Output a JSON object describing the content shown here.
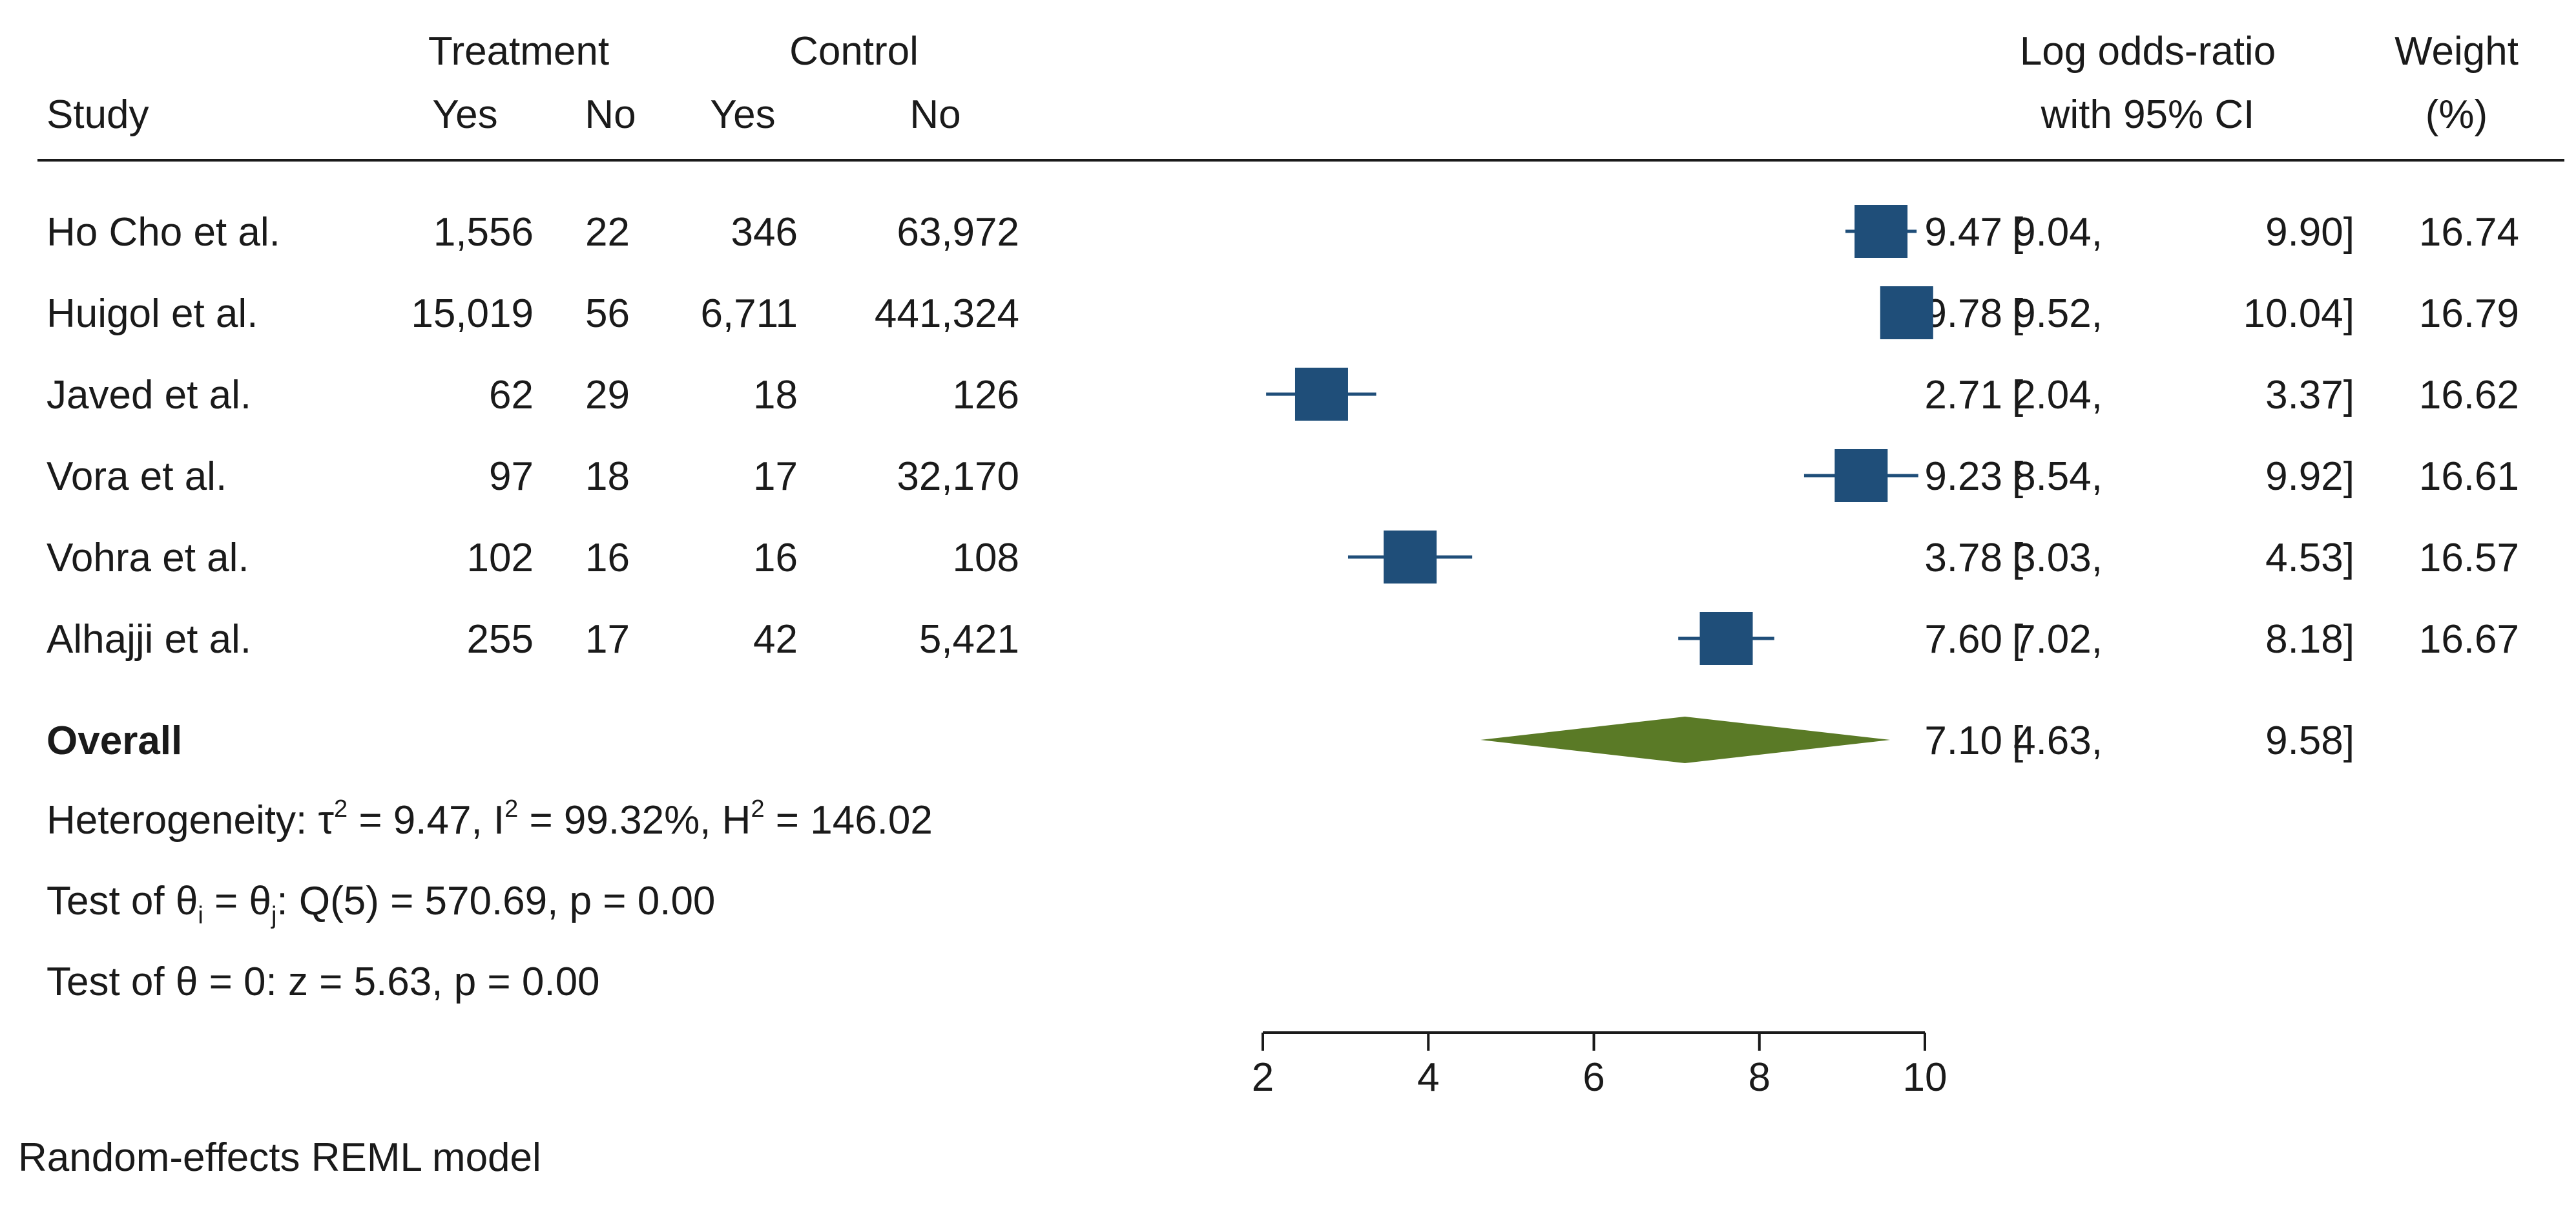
{
  "header": {
    "study": "Study",
    "treatment": "Treatment",
    "control": "Control",
    "yes": "Yes",
    "no": "No",
    "effect_line1": "Log odds-ratio",
    "effect_line2": "with 95% CI",
    "weight_line1": "Weight",
    "weight_line2": "(%)"
  },
  "chart_data": {
    "type": "forest",
    "effect_measure": "Log odds-ratio",
    "xlim": [
      2,
      10
    ],
    "xticks": [
      "2",
      "4",
      "6",
      "8",
      "10"
    ],
    "marker_color": "#1f4e79",
    "diamond_color": "#5a7a26",
    "studies": [
      {
        "name": "Ho Cho et al.",
        "t_yes": "1,556",
        "t_no": "22",
        "c_yes": "346",
        "c_no": "63,972",
        "est": 9.47,
        "lo": 9.04,
        "hi": 9.9,
        "est_text": "9.47",
        "lo_text": "9.04,",
        "hi_text": "9.90]",
        "weight": "16.74"
      },
      {
        "name": "Huigol et al.",
        "t_yes": "15,019",
        "t_no": "56",
        "c_yes": "6,711",
        "c_no": "441,324",
        "est": 9.78,
        "lo": 9.52,
        "hi": 10.04,
        "est_text": "9.78",
        "lo_text": "9.52,",
        "hi_text": "10.04]",
        "weight": "16.79"
      },
      {
        "name": "Javed et al.",
        "t_yes": "62",
        "t_no": "29",
        "c_yes": "18",
        "c_no": "126",
        "est": 2.71,
        "lo": 2.04,
        "hi": 3.37,
        "est_text": "2.71",
        "lo_text": "2.04,",
        "hi_text": "3.37]",
        "weight": "16.62"
      },
      {
        "name": "Vora et al.",
        "t_yes": "97",
        "t_no": "18",
        "c_yes": "17",
        "c_no": "32,170",
        "est": 9.23,
        "lo": 8.54,
        "hi": 9.92,
        "est_text": "9.23",
        "lo_text": "8.54,",
        "hi_text": "9.92]",
        "weight": "16.61"
      },
      {
        "name": "Vohra et al.",
        "t_yes": "102",
        "t_no": "16",
        "c_yes": "16",
        "c_no": "108",
        "est": 3.78,
        "lo": 3.03,
        "hi": 4.53,
        "est_text": "3.78",
        "lo_text": "3.03,",
        "hi_text": "4.53]",
        "weight": "16.57"
      },
      {
        "name": "Alhajji et al.",
        "t_yes": "255",
        "t_no": "17",
        "c_yes": "42",
        "c_no": "5,421",
        "est": 7.6,
        "lo": 7.02,
        "hi": 8.18,
        "est_text": "7.60",
        "lo_text": "7.02,",
        "hi_text": "8.18]",
        "weight": "16.67"
      }
    ],
    "overall": {
      "label": "Overall",
      "est": 7.1,
      "lo": 4.63,
      "hi": 9.58,
      "est_text": "7.10",
      "lo_text": "4.63,",
      "hi_text": "9.58]"
    },
    "heterogeneity": {
      "prefix": "Heterogeneity: τ",
      "tau_val": " = 9.47, I",
      "i_val": " = 99.32%, H",
      "h_val": " = 146.02",
      "sup": "2"
    },
    "test_homogeneity": {
      "prefix": "Test of θ",
      "sub_i": "i",
      "eq": " = θ",
      "sub_j": "j",
      "rest": ": Q(5) = 570.69, p = 0.00"
    },
    "test_effect": "Test of θ = 0: z = 5.63, p = 0.00",
    "model_note": "Random-effects REML model"
  }
}
